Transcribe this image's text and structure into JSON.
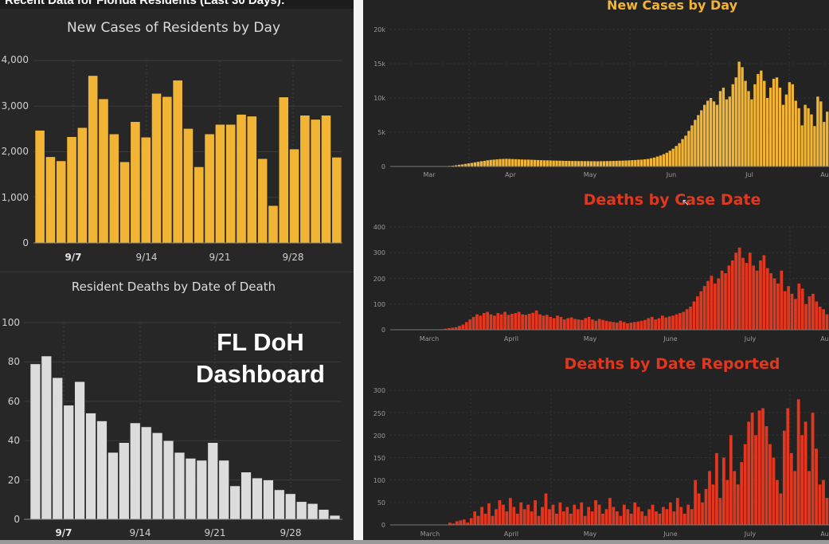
{
  "header_title": "Recent Data for Florida Residents (Last 30 Days):",
  "overlay": {
    "line1": "FL DoH",
    "line2": "Dashboard"
  },
  "colors": {
    "gold": "#f2b434",
    "red": "#e2371f",
    "light": "#dcdcdc",
    "bg": "#272727"
  },
  "chart_data": [
    {
      "id": "cases30",
      "type": "bar",
      "title": "New Cases of Residents by Day",
      "ylim": [
        0,
        4000
      ],
      "yticks": [
        0,
        1000,
        2000,
        3000,
        4000
      ],
      "ytick_labels": [
        "0",
        "1,000",
        "2,000",
        "3,000",
        "4,000"
      ],
      "xtick_labels": [
        "9/7",
        "9/14",
        "9/21",
        "9/28"
      ],
      "values": [
        2470,
        1890,
        1800,
        2330,
        2530,
        3670,
        3160,
        2390,
        1780,
        2660,
        2320,
        3280,
        3210,
        3570,
        2510,
        1670,
        2390,
        2600,
        2600,
        2820,
        2780,
        1850,
        820,
        3200,
        2060,
        2800,
        2710,
        2800,
        1880
      ]
    },
    {
      "id": "deaths30",
      "type": "bar",
      "title": "Resident Deaths by Date of Death",
      "ylim": [
        0,
        100
      ],
      "yticks": [
        0,
        20,
        40,
        60,
        80,
        100
      ],
      "ytick_labels": [
        "0",
        "20",
        "40",
        "60",
        "80",
        "100"
      ],
      "xtick_labels": [
        "9/7",
        "9/14",
        "9/21",
        "9/28"
      ],
      "values": [
        79,
        83,
        72,
        58,
        70,
        54,
        50,
        34,
        39,
        49,
        47,
        44,
        40,
        34,
        31,
        30,
        39,
        30,
        17,
        24,
        21,
        20,
        15,
        13,
        9,
        8,
        5,
        2
      ]
    },
    {
      "id": "casesAll",
      "type": "bar",
      "title": "New Cases by Day",
      "ylim": [
        0,
        20000
      ],
      "yticks": [
        0,
        5000,
        10000,
        15000,
        20000
      ],
      "ytick_labels": [
        "0",
        "5k",
        "10k",
        "15k",
        "20k"
      ],
      "xtick_labels": [
        "Mar",
        "Apr",
        "May",
        "Jun",
        "Jul",
        "Aug"
      ],
      "start_label_index": 0,
      "values": [
        0,
        0,
        0,
        0,
        0,
        0,
        0,
        0,
        0,
        0,
        0,
        0,
        0,
        0,
        0,
        0,
        50,
        80,
        120,
        180,
        250,
        300,
        380,
        450,
        520,
        600,
        680,
        760,
        820,
        900,
        960,
        1000,
        1040,
        1080,
        1100,
        1120,
        1100,
        1080,
        1060,
        1040,
        1020,
        1000,
        1000,
        980,
        960,
        940,
        920,
        900,
        900,
        880,
        860,
        850,
        840,
        830,
        820,
        810,
        800,
        800,
        790,
        790,
        780,
        780,
        770,
        770,
        760,
        770,
        780,
        790,
        800,
        810,
        820,
        840,
        850,
        870,
        890,
        920,
        940,
        980,
        1000,
        1050,
        1100,
        1200,
        1300,
        1450,
        1600,
        1800,
        2000,
        2300,
        2600,
        3000,
        3400,
        4000,
        4500,
        5200,
        6000,
        6800,
        7500,
        8200,
        9000,
        9600,
        10000,
        9500,
        9000,
        11000,
        11500,
        9800,
        10200,
        12000,
        13000,
        15300,
        14500,
        12500,
        11000,
        9800,
        12000,
        13500,
        14000,
        12500,
        10000,
        11500,
        12800,
        13000,
        11500,
        9000,
        10500,
        12300,
        12000,
        9600,
        8500,
        6000,
        9000,
        8500,
        7600,
        5900,
        10200,
        9500,
        6500,
        8000
      ]
    },
    {
      "id": "deathsCase",
      "type": "bar",
      "title": "Deaths by Case Date",
      "ylim": [
        0,
        400
      ],
      "yticks": [
        0,
        100,
        200,
        300,
        400
      ],
      "ytick_labels": [
        "0",
        "100",
        "200",
        "300",
        "400"
      ],
      "xtick_labels": [
        "March",
        "April",
        "May",
        "June",
        "July",
        "Aug"
      ],
      "values": [
        0,
        0,
        0,
        0,
        0,
        0,
        0,
        0,
        0,
        0,
        0,
        0,
        0,
        2,
        4,
        6,
        8,
        10,
        15,
        20,
        30,
        40,
        50,
        60,
        55,
        65,
        70,
        60,
        55,
        65,
        60,
        70,
        58,
        62,
        65,
        70,
        60,
        58,
        62,
        66,
        75,
        60,
        55,
        58,
        50,
        45,
        55,
        50,
        40,
        45,
        48,
        42,
        40,
        38,
        45,
        50,
        40,
        35,
        42,
        38,
        35,
        32,
        30,
        28,
        35,
        30,
        25,
        28,
        30,
        32,
        35,
        38,
        45,
        50,
        40,
        45,
        55,
        48,
        52,
        55,
        60,
        65,
        70,
        80,
        90,
        110,
        130,
        150,
        170,
        190,
        210,
        180,
        200,
        230,
        220,
        250,
        270,
        300,
        320,
        280,
        260,
        300,
        250,
        230,
        270,
        290,
        240,
        220,
        200,
        180,
        230,
        150,
        170,
        140,
        120,
        180,
        160,
        100,
        130,
        140,
        110,
        90,
        80,
        60
      ]
    },
    {
      "id": "deathsReported",
      "type": "bar",
      "title": "Deaths by Date Reported",
      "ylim": [
        0,
        300
      ],
      "yticks": [
        0,
        50,
        100,
        150,
        200,
        250,
        300
      ],
      "ytick_labels": [
        "0",
        "50",
        "100",
        "150",
        "200",
        "250",
        "300"
      ],
      "xtick_labels": [
        "March",
        "April",
        "May",
        "June",
        "July",
        "Aug"
      ],
      "values": [
        0,
        0,
        0,
        0,
        0,
        0,
        0,
        0,
        0,
        0,
        0,
        0,
        0,
        0,
        0,
        5,
        3,
        8,
        10,
        12,
        5,
        15,
        30,
        20,
        40,
        25,
        48,
        20,
        35,
        55,
        45,
        30,
        60,
        40,
        25,
        50,
        35,
        45,
        30,
        55,
        20,
        40,
        70,
        35,
        45,
        25,
        50,
        30,
        40,
        25,
        45,
        35,
        50,
        20,
        40,
        30,
        55,
        45,
        25,
        35,
        60,
        40,
        30,
        20,
        45,
        35,
        25,
        50,
        40,
        30,
        20,
        35,
        45,
        30,
        25,
        40,
        35,
        50,
        30,
        60,
        40,
        25,
        45,
        35,
        100,
        70,
        50,
        80,
        120,
        90,
        160,
        60,
        150,
        100,
        200,
        120,
        90,
        140,
        180,
        230,
        250,
        200,
        255,
        260,
        220,
        180,
        150,
        100,
        70,
        210,
        260,
        160,
        120,
        280,
        200,
        230,
        120,
        250,
        170,
        90,
        100,
        60
      ]
    }
  ]
}
